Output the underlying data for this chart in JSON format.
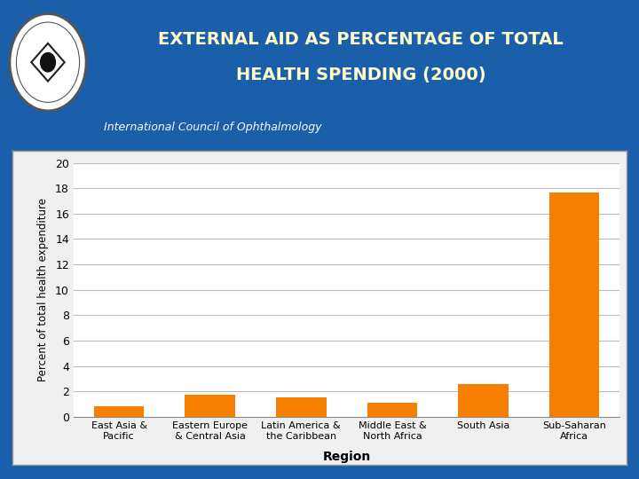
{
  "title_line1": "EXTERNAL AID AS PERCENTAGE OF TOTAL",
  "title_line2": "HEALTH SPENDING (2000)",
  "subtitle": "International Council of Ophthalmology",
  "categories": [
    "East Asia &\nPacific",
    "Eastern Europe\n& Central Asia",
    "Latin America &\nthe Caribbean",
    "Middle East &\nNorth Africa",
    "South Asia",
    "Sub-Saharan\nAfrica"
  ],
  "values": [
    0.8,
    1.7,
    1.5,
    1.1,
    2.6,
    17.7
  ],
  "bar_color": "#F77F00",
  "ylabel": "Percent of total health expenditure",
  "xlabel": "Region",
  "ylim": [
    0,
    20
  ],
  "yticks": [
    0,
    2,
    4,
    6,
    8,
    10,
    12,
    14,
    16,
    18,
    20
  ],
  "header_bg_color": "#1B5FAA",
  "chart_bg_color": "#ffffff",
  "outer_bg_color": "#1B5FAA",
  "title_color": "#FFFFCC",
  "subtitle_color": "#ffffff",
  "grid_color": "#bbbbbb",
  "axis_label_color": "#000000",
  "tick_label_color": "#000000",
  "chart_panel_bg": "#f0f0f0",
  "chart_border_color": "#999999"
}
